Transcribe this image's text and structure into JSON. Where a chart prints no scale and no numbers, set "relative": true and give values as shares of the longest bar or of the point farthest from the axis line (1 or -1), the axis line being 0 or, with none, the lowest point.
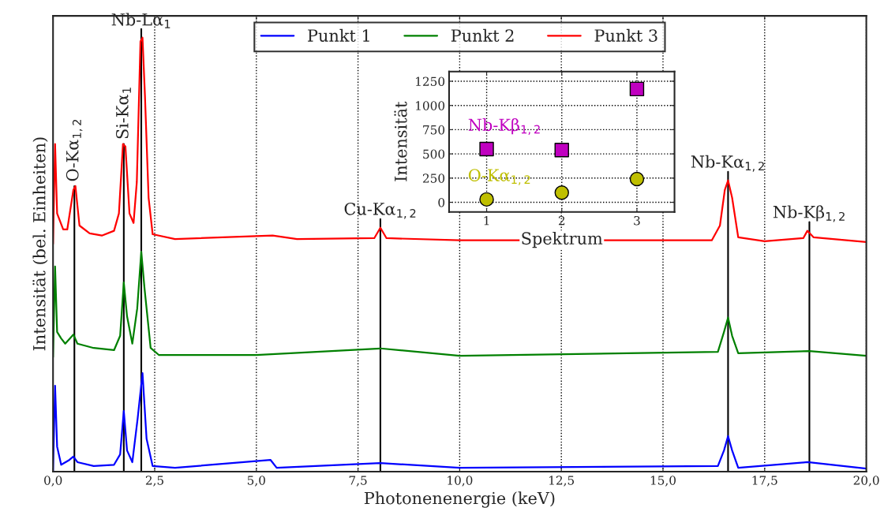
{
  "chart_data": [
    {
      "type": "line",
      "xlabel": "Photonenenergie (keV)",
      "ylabel": "Intensität (bel. Einheiten)",
      "relative": true,
      "xlim": [
        0,
        20
      ],
      "xticks": [
        {
          "value": 0,
          "label": "0,0"
        },
        {
          "value": 2.5,
          "label": "2,5"
        },
        {
          "value": 5,
          "label": "5,0"
        },
        {
          "value": 7.5,
          "label": "7,5"
        },
        {
          "value": 10,
          "label": "10,0"
        },
        {
          "value": 12.5,
          "label": "12,5"
        },
        {
          "value": 15,
          "label": "15,0"
        },
        {
          "value": 17.5,
          "label": "17,5"
        },
        {
          "value": 20,
          "label": "20,0"
        }
      ],
      "grid": "x",
      "legend": "top",
      "marker": "none",
      "line_style": "solid",
      "series": [
        {
          "name": "Punkt 1",
          "color": "#0000ff",
          "x": [
            0.0,
            0.05,
            0.1,
            0.2,
            0.4,
            0.5,
            0.6,
            1.0,
            1.5,
            1.65,
            1.74,
            1.82,
            1.95,
            2.08,
            2.2,
            2.3,
            2.45,
            3.0,
            5.35,
            5.5,
            8.05,
            10.0,
            16.35,
            16.5,
            16.6,
            16.7,
            16.85,
            18.55,
            20.0
          ],
          "values": [
            0.0,
            0.198,
            0.058,
            0.016,
            0.027,
            0.035,
            0.022,
            0.013,
            0.016,
            0.04,
            0.14,
            0.049,
            0.022,
            0.122,
            0.227,
            0.076,
            0.013,
            0.009,
            0.027,
            0.009,
            0.02,
            0.009,
            0.013,
            0.049,
            0.082,
            0.049,
            0.009,
            0.022,
            0.007
          ]
        },
        {
          "name": "Punkt 2",
          "color": "#008000",
          "x": [
            0.0,
            0.05,
            0.1,
            0.2,
            0.3,
            0.5,
            0.6,
            1.0,
            1.5,
            1.65,
            1.74,
            1.82,
            1.95,
            2.07,
            2.17,
            2.25,
            2.4,
            2.6,
            5.0,
            8.05,
            10.0,
            16.35,
            16.5,
            16.6,
            16.7,
            16.85,
            18.6,
            20.0
          ],
          "values": [
            0.264,
            0.473,
            0.322,
            0.307,
            0.295,
            0.316,
            0.295,
            0.285,
            0.28,
            0.313,
            0.436,
            0.358,
            0.295,
            0.376,
            0.507,
            0.422,
            0.285,
            0.269,
            0.269,
            0.284,
            0.267,
            0.276,
            0.322,
            0.355,
            0.313,
            0.273,
            0.278,
            0.267
          ]
        },
        {
          "name": "Punkt 3",
          "color": "#ff0000",
          "x": [
            0.0,
            0.05,
            0.1,
            0.25,
            0.35,
            0.5,
            0.55,
            0.65,
            0.9,
            1.2,
            1.5,
            1.62,
            1.72,
            1.78,
            1.88,
            1.98,
            2.06,
            2.15,
            2.2,
            2.26,
            2.35,
            2.45,
            3.0,
            5.4,
            6.0,
            7.9,
            8.05,
            8.2,
            10.0,
            16.2,
            16.4,
            16.52,
            16.6,
            16.7,
            16.85,
            17.5,
            18.45,
            18.55,
            18.7,
            20.0
          ],
          "values": [
            0.525,
            0.755,
            0.595,
            0.558,
            0.558,
            0.649,
            0.658,
            0.567,
            0.549,
            0.544,
            0.555,
            0.595,
            0.755,
            0.749,
            0.595,
            0.573,
            0.667,
            0.991,
            1.0,
            0.867,
            0.631,
            0.547,
            0.536,
            0.544,
            0.536,
            0.538,
            0.562,
            0.538,
            0.533,
            0.533,
            0.567,
            0.649,
            0.671,
            0.631,
            0.54,
            0.531,
            0.538,
            0.555,
            0.54,
            0.529
          ]
        }
      ],
      "ref_lines": [
        {
          "axis": "x",
          "value": 0.525,
          "label": "O-Kα$_{1,2}$",
          "color": "#000000"
        },
        {
          "axis": "x",
          "value": 1.74,
          "label": "Si-Kα$_{1}$",
          "color": "#000000"
        },
        {
          "axis": "x",
          "value": 2.17,
          "label": "Nb-Lα$_{1}$",
          "color": "#000000"
        },
        {
          "axis": "x",
          "value": 8.05,
          "label": "Cu-Kα$_{1,2}$",
          "color": "#000000"
        },
        {
          "axis": "x",
          "value": 16.6,
          "label": "Nb-Kα$_{1,2}$",
          "color": "#000000"
        },
        {
          "axis": "x",
          "value": 18.6,
          "label": "Nb-Kβ$_{1,2}$",
          "color": "#000000"
        }
      ]
    },
    {
      "type": "scatter",
      "xlabel": "Spektrum",
      "ylabel": "Intensität",
      "x": [
        1,
        2,
        3
      ],
      "xlim": [
        0.5,
        3.5
      ],
      "xticks": [
        1,
        2,
        3
      ],
      "ylim": [
        -100,
        1350
      ],
      "yticks": [
        0,
        250,
        500,
        750,
        1000,
        1250
      ],
      "grid": true,
      "series": [
        {
          "name": "Nb-Kβ$_{1,2}$",
          "color": "#c000c0",
          "marker": "square",
          "values": [
            550,
            540,
            1170
          ]
        },
        {
          "name": "O-Kα$_{1,2}$",
          "color": "#bfbf00",
          "marker": "circle",
          "values": [
            30,
            100,
            240
          ]
        }
      ]
    }
  ]
}
